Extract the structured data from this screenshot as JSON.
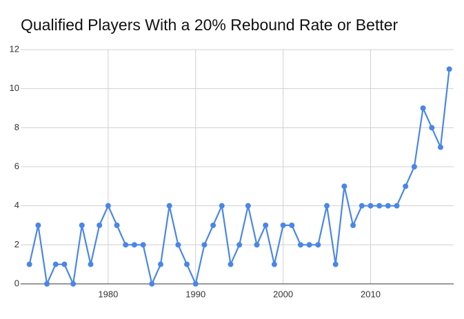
{
  "chart_data": {
    "type": "line",
    "title": "Qualified Players With a 20% Rebound Rate or Better",
    "x": [
      1971,
      1972,
      1973,
      1974,
      1975,
      1976,
      1977,
      1978,
      1979,
      1980,
      1981,
      1982,
      1983,
      1984,
      1985,
      1986,
      1987,
      1988,
      1989,
      1990,
      1991,
      1992,
      1993,
      1994,
      1995,
      1996,
      1997,
      1998,
      1999,
      2000,
      2001,
      2002,
      2003,
      2004,
      2005,
      2006,
      2007,
      2008,
      2009,
      2010,
      2011,
      2012,
      2013,
      2014,
      2015,
      2016,
      2017,
      2018,
      2019
    ],
    "series": [
      {
        "name": "Players",
        "color": "#4a86e8",
        "values": [
          1,
          3,
          0,
          1,
          1,
          0,
          3,
          1,
          3,
          4,
          3,
          2,
          2,
          2,
          0,
          1,
          4,
          2,
          1,
          0,
          2,
          3,
          4,
          1,
          2,
          4,
          2,
          3,
          1,
          3,
          3,
          2,
          2,
          2,
          4,
          1,
          5,
          3,
          4,
          4,
          4,
          4,
          4,
          5,
          6,
          9,
          8,
          7,
          11
        ]
      }
    ],
    "xlim": [
      1970,
      2019.5
    ],
    "xticks": [
      1980,
      1990,
      2000,
      2010
    ],
    "ylim": [
      0,
      12
    ],
    "yticks": [
      0,
      2,
      4,
      6,
      8,
      10,
      12
    ],
    "grid": true
  }
}
